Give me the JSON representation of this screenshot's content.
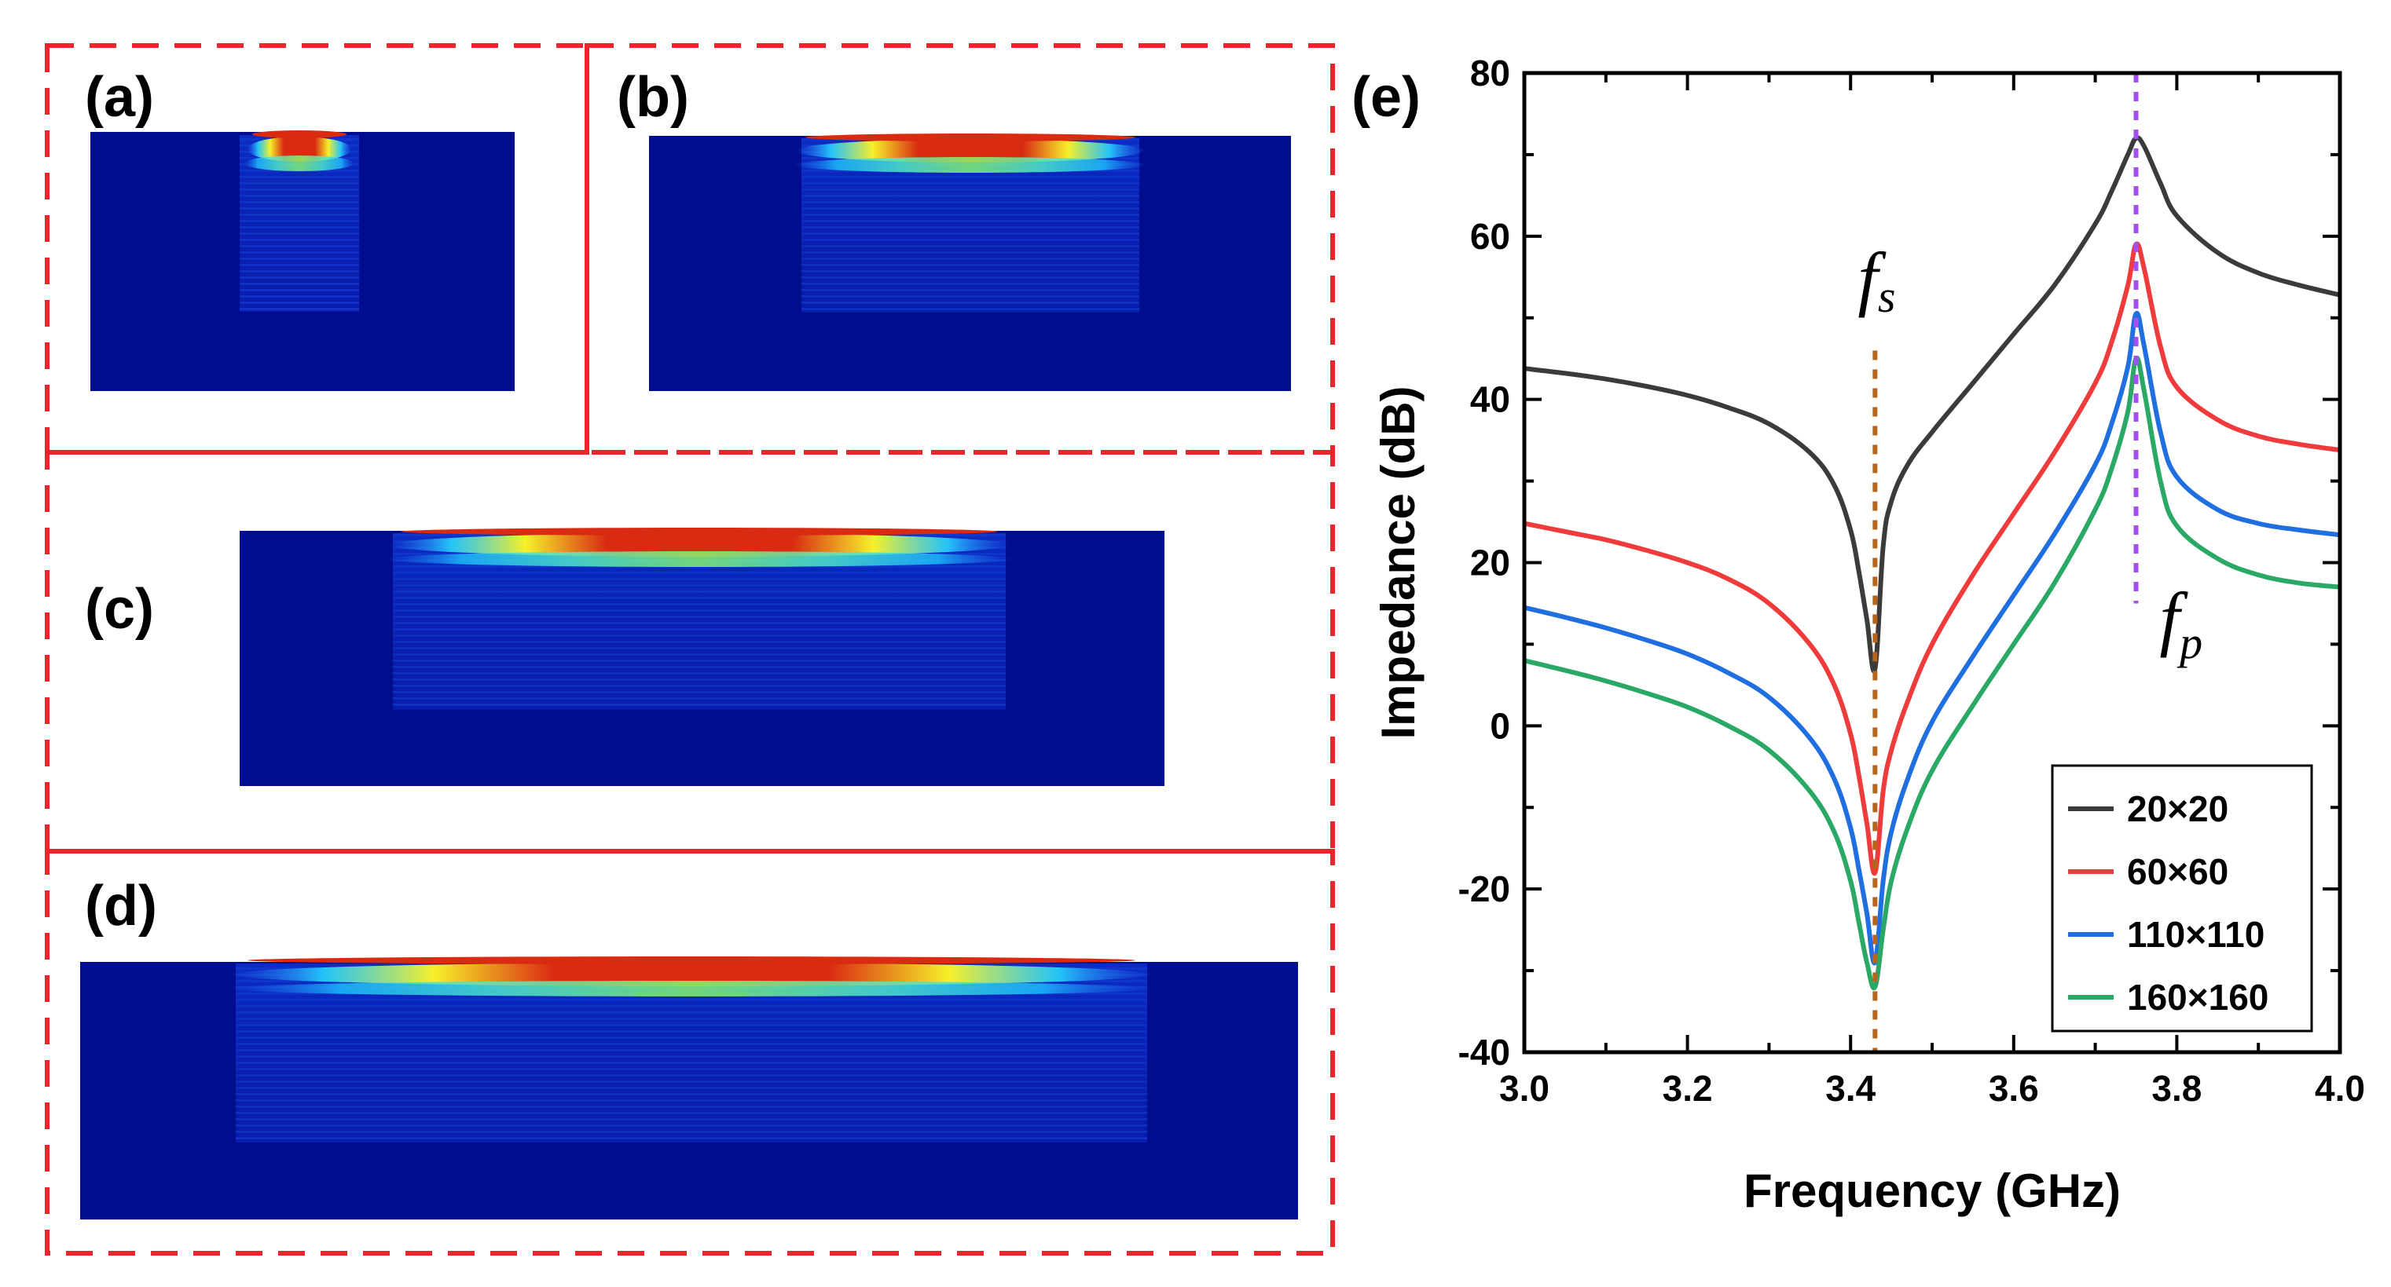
{
  "panels": {
    "a": "(a)",
    "b": "(b)",
    "c": "(c)",
    "d": "(d)",
    "e": "(e)"
  },
  "colors": {
    "dash_border": "#e8262b",
    "field_bg": "#000d8f",
    "series": [
      "#3b3b3b",
      "#ef3b3b",
      "#1f6fe0",
      "#2aa866"
    ],
    "fs_marker": "#b5651d",
    "fp_marker": "#a14ff0"
  },
  "chart_data": {
    "type": "line",
    "title": "",
    "xlabel": "Frequency (GHz)",
    "ylabel": "Impedance (dB)",
    "xlim": [
      3.0,
      4.0
    ],
    "ylim": [
      -40,
      80
    ],
    "xticks": [
      "3.0",
      "3.2",
      "3.4",
      "3.6",
      "3.8",
      "4.0"
    ],
    "yticks": [
      "-40",
      "-20",
      "0",
      "20",
      "40",
      "60",
      "80"
    ],
    "x": [
      3.0,
      3.05,
      3.1,
      3.15,
      3.2,
      3.25,
      3.3,
      3.35,
      3.38,
      3.4,
      3.41,
      3.42,
      3.43,
      3.44,
      3.45,
      3.47,
      3.5,
      3.55,
      3.6,
      3.65,
      3.7,
      3.72,
      3.74,
      3.75,
      3.76,
      3.78,
      3.8,
      3.85,
      3.9,
      3.95,
      4.0
    ],
    "series": [
      {
        "name": "20×20",
        "values": [
          43.8,
          43.2,
          42.5,
          41.6,
          40.5,
          39.0,
          37.0,
          33.5,
          29.5,
          24.0,
          19.0,
          13.0,
          7.0,
          22.0,
          27.5,
          32.0,
          36.0,
          42.0,
          48.0,
          54.0,
          61.5,
          65.5,
          70.0,
          72.0,
          71.0,
          66.5,
          62.5,
          58.0,
          55.5,
          54.0,
          52.8
        ]
      },
      {
        "name": "60×60",
        "values": [
          24.8,
          23.8,
          22.8,
          21.5,
          20.0,
          18.0,
          15.0,
          10.0,
          5.0,
          -1.0,
          -6.0,
          -12.0,
          -18.0,
          -8.0,
          -3.0,
          3.0,
          10.0,
          18.5,
          26.0,
          33.5,
          42.0,
          47.0,
          54.0,
          59.0,
          56.0,
          46.5,
          41.5,
          37.5,
          35.5,
          34.5,
          33.8
        ]
      },
      {
        "name": "110×110",
        "values": [
          14.5,
          13.3,
          12.0,
          10.5,
          8.8,
          6.5,
          3.5,
          -1.5,
          -6.5,
          -12.5,
          -17.5,
          -23.0,
          -29.0,
          -19.0,
          -13.0,
          -6.5,
          0.5,
          8.5,
          16.0,
          23.5,
          32.0,
          37.0,
          44.0,
          50.5,
          46.5,
          36.0,
          30.5,
          26.5,
          24.8,
          24.0,
          23.4
        ]
      },
      {
        "name": "160×160",
        "values": [
          8.0,
          6.8,
          5.5,
          4.0,
          2.3,
          0.0,
          -3.0,
          -8.0,
          -13.0,
          -19.0,
          -24.0,
          -29.0,
          -32.0,
          -25.0,
          -19.0,
          -12.5,
          -5.5,
          2.5,
          10.0,
          17.5,
          26.5,
          31.5,
          38.5,
          45.0,
          41.0,
          30.0,
          24.5,
          20.5,
          18.5,
          17.5,
          17.0
        ]
      }
    ],
    "annotations": {
      "fs": {
        "symbol": "f",
        "sub": "s",
        "x": 3.43
      },
      "fp": {
        "symbol": "f",
        "sub": "p",
        "x": 3.75
      }
    },
    "legend_position": "bottom-right"
  }
}
